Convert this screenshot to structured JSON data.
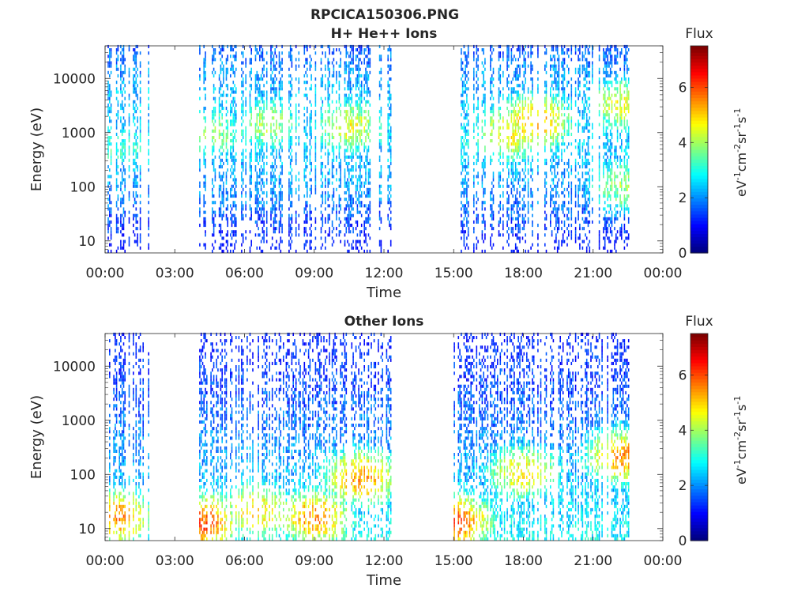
{
  "figure": {
    "title": "RPCICA150306.PNG"
  },
  "chart_data": [
    {
      "type": "heatmap",
      "title": "H+ He++ Ions",
      "xlabel": "Time",
      "ylabel": "Energy (eV)",
      "x_ticks": [
        "00:00",
        "03:00",
        "06:00",
        "09:00",
        "12:00",
        "15:00",
        "18:00",
        "21:00",
        "00:00"
      ],
      "x_range_hours": [
        0,
        24
      ],
      "y_scale": "log",
      "y_range": [
        6,
        40000
      ],
      "y_ticks": [
        10,
        100,
        1000,
        10000
      ],
      "y_tick_labels": [
        "10",
        "100",
        "1000",
        "10000"
      ],
      "colorbar": {
        "label": "Flux",
        "unit_label": "eV-1cm-2sr-1s-1",
        "range": [
          0,
          7.5
        ],
        "ticks": [
          0,
          2,
          4,
          6
        ],
        "tick_labels": [
          "0",
          "2",
          "4",
          "6"
        ],
        "colormap": "jet"
      },
      "data_segments_hours": [
        [
          0.05,
          1.9
        ],
        [
          4.05,
          12.3
        ],
        [
          15.0,
          22.6
        ]
      ],
      "gaps_hours": [
        [
          1.9,
          4.05
        ],
        [
          12.3,
          15.0
        ],
        [
          22.6,
          24
        ]
      ],
      "flux_peaks": [
        {
          "time_h": 0.3,
          "energy_ev": 500,
          "flux": 3.2
        },
        {
          "time_h": 1.3,
          "energy_ev": 500,
          "flux": 3.0
        },
        {
          "time_h": 4.6,
          "energy_ev": 900,
          "flux": 3.8
        },
        {
          "time_h": 7.0,
          "energy_ev": 1300,
          "flux": 4.0
        },
        {
          "time_h": 10.5,
          "energy_ev": 1200,
          "flux": 4.5
        },
        {
          "time_h": 15.0,
          "energy_ev": 600,
          "flux": 3.0
        },
        {
          "time_h": 17.4,
          "energy_ev": 900,
          "flux": 4.8
        },
        {
          "time_h": 18.5,
          "energy_ev": 1500,
          "flux": 5.2
        },
        {
          "time_h": 22.3,
          "energy_ev": 3000,
          "flux": 4.5
        },
        {
          "time_h": 22.3,
          "energy_ev": 100,
          "flux": 4.0
        }
      ]
    },
    {
      "type": "heatmap",
      "title": "Other Ions",
      "xlabel": "Time",
      "ylabel": "Energy (eV)",
      "x_ticks": [
        "00:00",
        "03:00",
        "06:00",
        "09:00",
        "12:00",
        "15:00",
        "18:00",
        "21:00",
        "00:00"
      ],
      "x_range_hours": [
        0,
        24
      ],
      "y_scale": "log",
      "y_range": [
        6,
        40000
      ],
      "y_ticks": [
        10,
        100,
        1000,
        10000
      ],
      "y_tick_labels": [
        "10",
        "100",
        "1000",
        "10000"
      ],
      "colorbar": {
        "label": "Flux",
        "unit_label": "eV-1cm-2sr-1s-1",
        "range": [
          0,
          7.5
        ],
        "ticks": [
          0,
          2,
          4,
          6
        ],
        "tick_labels": [
          "0",
          "2",
          "4",
          "6"
        ],
        "colormap": "jet"
      },
      "data_segments_hours": [
        [
          0.05,
          1.9
        ],
        [
          4.05,
          12.3
        ],
        [
          15.0,
          22.6
        ]
      ],
      "gaps_hours": [
        [
          1.9,
          4.05
        ],
        [
          12.3,
          15.0
        ],
        [
          22.6,
          24
        ]
      ],
      "flux_peaks": [
        {
          "time_h": 0.5,
          "energy_ev": 15,
          "flux": 5.5
        },
        {
          "time_h": 4.1,
          "energy_ev": 12,
          "flux": 6.0
        },
        {
          "time_h": 6.5,
          "energy_ev": 20,
          "flux": 5.0
        },
        {
          "time_h": 9.0,
          "energy_ev": 15,
          "flux": 5.5
        },
        {
          "time_h": 11.0,
          "energy_ev": 80,
          "flux": 5.5
        },
        {
          "time_h": 15.0,
          "energy_ev": 12,
          "flux": 6.0
        },
        {
          "time_h": 18.0,
          "energy_ev": 100,
          "flux": 4.8
        },
        {
          "time_h": 22.3,
          "energy_ev": 200,
          "flux": 5.5
        }
      ]
    }
  ]
}
